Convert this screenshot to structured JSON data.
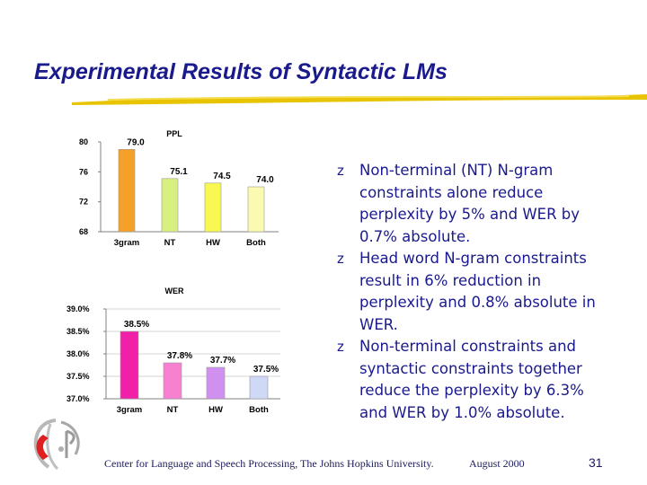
{
  "slide": {
    "title": "Experimental Results of Syntactic LMs",
    "bullets": [
      "Non-terminal (NT) N-gram constraints alone reduce perplexity by 5% and WER by 0.7% absolute.",
      "Head word N-gram constraints result in 6% reduction in perplexity and 0.8% absolute in WER.",
      "Non-terminal constraints and syntactic constraints together reduce the perplexity by 6.3% and WER by 1.0% absolute."
    ],
    "bullet_marker": "z",
    "footer": {
      "institution": "Center for Language and Speech Processing, The Johns Hopkins University.",
      "date": "August 2000",
      "page": "31"
    },
    "logo_icon": "clsp-logo-icon"
  },
  "chart_data": [
    {
      "type": "bar",
      "title": "PPL",
      "categories": [
        "3gram",
        "NT",
        "HW",
        "Both"
      ],
      "values": [
        79.0,
        75.1,
        74.5,
        74.0
      ],
      "value_labels": [
        "79.0",
        "75.1",
        "74.5",
        "74.0"
      ],
      "yticks": [
        "80",
        "76",
        "72",
        "68"
      ],
      "ylim": [
        68,
        80
      ],
      "grid": false,
      "colors": [
        "#f5a028",
        "#d8f080",
        "#f8f850",
        "#fafab0"
      ]
    },
    {
      "type": "bar",
      "title": "WER",
      "categories": [
        "3gram",
        "NT",
        "HW",
        "Both"
      ],
      "values": [
        38.5,
        37.8,
        37.7,
        37.5
      ],
      "value_labels": [
        "38.5%",
        "37.8%",
        "37.7%",
        "37.5%"
      ],
      "yticks": [
        "39.0%",
        "38.5%",
        "38.0%",
        "37.5%",
        "37.0%"
      ],
      "ylim": [
        37.0,
        39.0
      ],
      "grid": true,
      "colors": [
        "#f020a8",
        "#f880d0",
        "#d090f0",
        "#d0d8f8"
      ]
    }
  ]
}
